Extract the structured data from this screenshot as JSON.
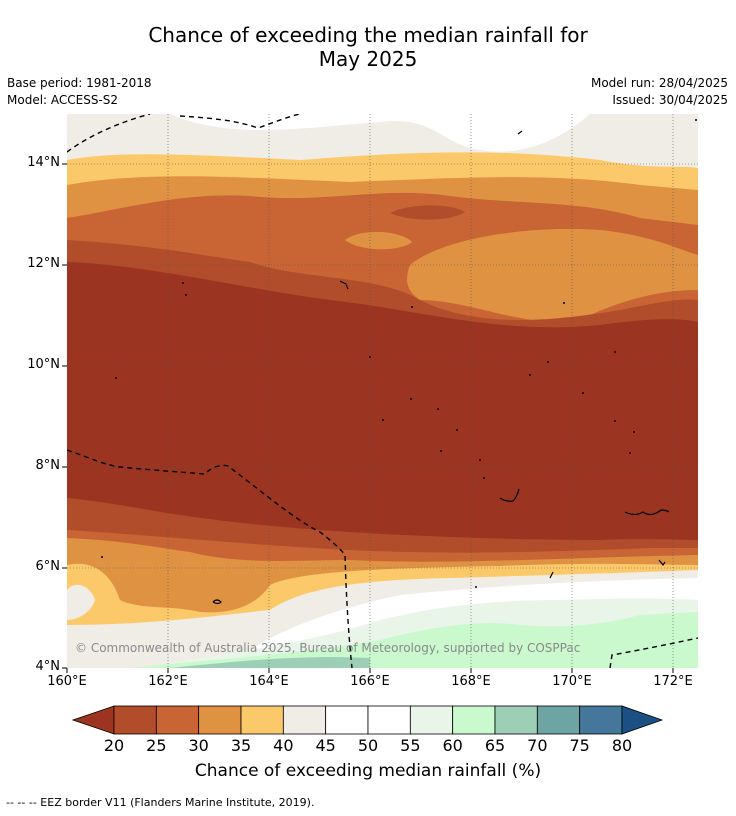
{
  "title": {
    "line1": "Chance of exceeding the median rainfall for",
    "line2": "May 2025"
  },
  "meta": {
    "base_period": "Base period: 1981-2018",
    "model": "Model: ACCESS-S2",
    "model_run": "Model run: 28/04/2025",
    "issued": "Issued: 30/04/2025"
  },
  "map": {
    "lat_labels": [
      "14°N",
      "12°N",
      "10°N",
      "8°N",
      "6°N",
      "4°N"
    ],
    "lon_labels": [
      "160°E",
      "162°E",
      "164°E",
      "166°E",
      "168°E",
      "170°E",
      "172°E"
    ],
    "copyright": "© Commonwealth of Australia 2025, Bureau of Meteorology, supported by COSPPac"
  },
  "colorbar": {
    "ticks": [
      "20",
      "25",
      "30",
      "35",
      "40",
      "45",
      "50",
      "55",
      "60",
      "65",
      "70",
      "75",
      "80"
    ],
    "colors": [
      "#9b3421",
      "#b14d2a",
      "#c96534",
      "#e09243",
      "#fcc96a",
      "#f0ece6",
      "#ffffff",
      "#ffffff",
      "#e9f5e8",
      "#c9f9cd",
      "#9ccfb6",
      "#6da5a4",
      "#44779b",
      "#1c5084"
    ],
    "title": "Chance of exceeding median rainfall (%)"
  },
  "footnote": "--  --  -- EEZ border V11 (Flanders Marine Institute, 2019)."
}
